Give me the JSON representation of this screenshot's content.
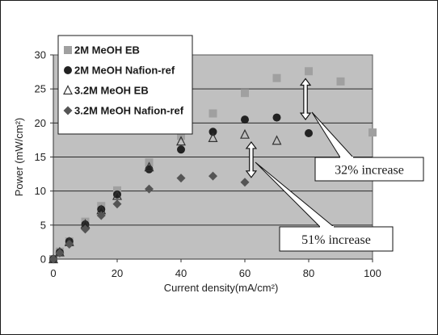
{
  "chart_data": {
    "type": "scatter",
    "title": "",
    "xlabel": "Current density(mA/cm²)",
    "ylabel": "Power (mW/cm²)",
    "xlim": [
      0,
      100
    ],
    "ylim": [
      0,
      30
    ],
    "xticks": [
      "0",
      "20",
      "40",
      "60",
      "80",
      "100"
    ],
    "yticks": [
      "0",
      "5",
      "10",
      "15",
      "20",
      "25",
      "30"
    ],
    "grid": "horizontal",
    "plot_background": "#c0c0c0",
    "legend_position": "top-left",
    "series": [
      {
        "name": "2M MeOH EB",
        "marker": "square",
        "color": "#a0a0a0",
        "points": [
          [
            0,
            0
          ],
          [
            2,
            1.1
          ],
          [
            5,
            2.6
          ],
          [
            10,
            5.5
          ],
          [
            15,
            7.8
          ],
          [
            20,
            10.1
          ],
          [
            30,
            14.2
          ],
          [
            40,
            18.1
          ],
          [
            50,
            21.4
          ],
          [
            60,
            24.4
          ],
          [
            70,
            26.6
          ],
          [
            80,
            27.6
          ],
          [
            90,
            26.1
          ],
          [
            100,
            18.6
          ]
        ]
      },
      {
        "name": "2M MeOH Nafion-ref",
        "marker": "circle",
        "color": "#222222",
        "points": [
          [
            0,
            0
          ],
          [
            2,
            1.0
          ],
          [
            5,
            2.6
          ],
          [
            10,
            5.1
          ],
          [
            15,
            7.3
          ],
          [
            20,
            9.5
          ],
          [
            30,
            13.2
          ],
          [
            40,
            16.1
          ],
          [
            50,
            18.7
          ],
          [
            60,
            20.5
          ],
          [
            70,
            20.8
          ],
          [
            80,
            18.5
          ]
        ]
      },
      {
        "name": "3.2M MeOH EB",
        "marker": "triangle",
        "color": "#333333",
        "points": [
          [
            0,
            0
          ],
          [
            2,
            1.0
          ],
          [
            5,
            2.5
          ],
          [
            10,
            5.1
          ],
          [
            15,
            7.2
          ],
          [
            20,
            9.3
          ],
          [
            30,
            13.5
          ],
          [
            40,
            17.3
          ],
          [
            50,
            17.8
          ],
          [
            60,
            18.3
          ],
          [
            70,
            17.4
          ]
        ]
      },
      {
        "name": "3.2M MeOH Nafion-ref",
        "marker": "diamond",
        "color": "#555555",
        "points": [
          [
            0,
            0
          ],
          [
            2,
            0.9
          ],
          [
            5,
            2.2
          ],
          [
            10,
            4.4
          ],
          [
            15,
            6.4
          ],
          [
            20,
            8.1
          ],
          [
            30,
            10.3
          ],
          [
            40,
            11.9
          ],
          [
            50,
            12.2
          ],
          [
            60,
            11.3
          ]
        ]
      }
    ],
    "annotations": [
      {
        "label": "32% increase",
        "arrow_x": 79,
        "arrow_y": [
          20.5,
          26.5
        ]
      },
      {
        "label": "51% increase",
        "arrow_x": 62,
        "arrow_y": [
          12.0,
          17.2
        ]
      }
    ]
  }
}
